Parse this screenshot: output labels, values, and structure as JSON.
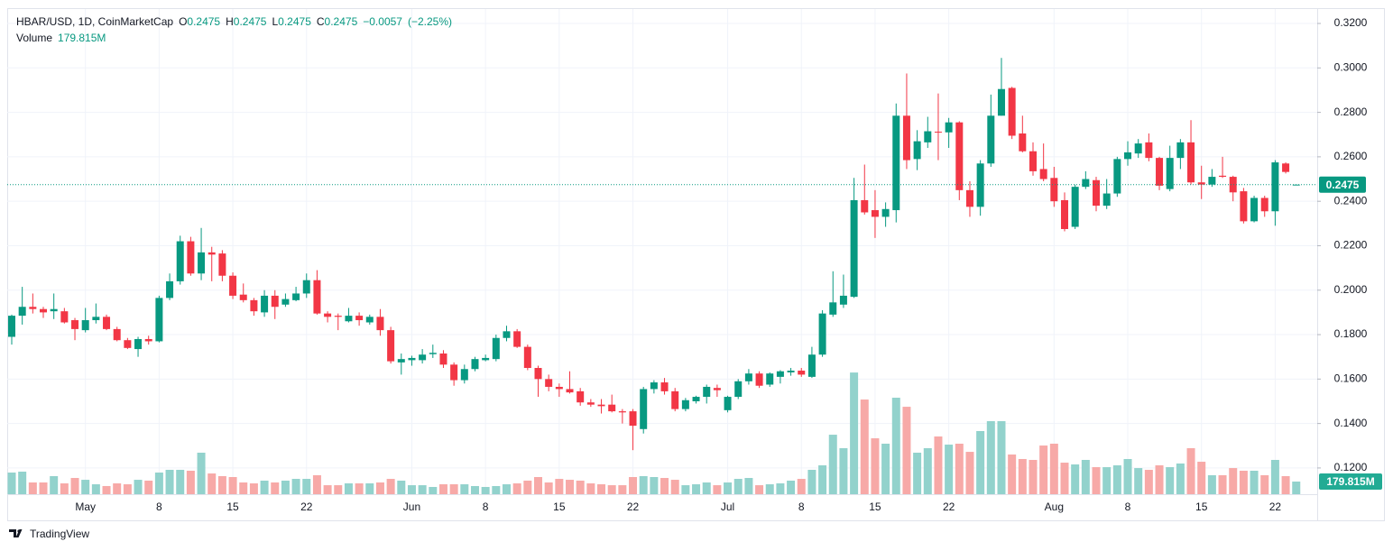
{
  "chart_data": {
    "type": "candlestick",
    "ohlc_labels": [
      "O",
      "H",
      "L",
      "C"
    ],
    "change": "−0.0057",
    "change_pct": "(−2.25%)",
    "up_color": "#089981",
    "down_color": "#f23645",
    "grid": true,
    "footer": "TradingView",
    "x": [
      "04-24",
      "04-25",
      "04-26",
      "04-27",
      "04-28",
      "04-29",
      "04-30",
      "05-01",
      "05-02",
      "05-03",
      "05-04",
      "05-05",
      "05-06",
      "05-07",
      "05-08",
      "05-09",
      "05-10",
      "05-11",
      "05-12",
      "05-13",
      "05-14",
      "05-15",
      "05-16",
      "05-17",
      "05-18",
      "05-19",
      "05-20",
      "05-21",
      "05-22",
      "05-23",
      "05-24",
      "05-25",
      "05-26",
      "05-27",
      "05-28",
      "05-29",
      "05-30",
      "05-31",
      "06-01",
      "06-02",
      "06-03",
      "06-04",
      "06-05",
      "06-06",
      "06-07",
      "06-08",
      "06-09",
      "06-10",
      "06-11",
      "06-12",
      "06-13",
      "06-14",
      "06-15",
      "06-16",
      "06-17",
      "06-18",
      "06-19",
      "06-20",
      "06-21",
      "06-22",
      "06-23",
      "06-24",
      "06-25",
      "06-26",
      "06-27",
      "06-28",
      "06-29",
      "06-30",
      "07-01",
      "07-02",
      "07-03",
      "07-04",
      "07-05",
      "07-06",
      "07-07",
      "07-08",
      "07-09",
      "07-10",
      "07-11",
      "07-12",
      "07-13",
      "07-14",
      "07-15",
      "07-16",
      "07-17",
      "07-18",
      "07-19",
      "07-20",
      "07-21",
      "07-22",
      "07-23",
      "07-24",
      "07-25",
      "07-26",
      "07-27",
      "07-28",
      "07-29",
      "07-30",
      "07-31",
      "08-01",
      "08-02",
      "08-03",
      "08-04",
      "08-05",
      "08-06",
      "08-07",
      "08-08",
      "08-09",
      "08-10",
      "08-11",
      "08-12",
      "08-13",
      "08-14",
      "08-15",
      "08-16",
      "08-17",
      "08-18",
      "08-19",
      "08-20",
      "08-21",
      "08-22",
      "08-23",
      "08-24"
    ],
    "xticks": [
      {
        "value": "05-01",
        "label": "May"
      },
      {
        "value": "05-08",
        "label": "8"
      },
      {
        "value": "05-15",
        "label": "15"
      },
      {
        "value": "05-22",
        "label": "22"
      },
      {
        "value": "06-01",
        "label": "Jun"
      },
      {
        "value": "06-08",
        "label": "8"
      },
      {
        "value": "06-15",
        "label": "15"
      },
      {
        "value": "06-22",
        "label": "22"
      },
      {
        "value": "07-01",
        "label": "Jul"
      },
      {
        "value": "07-08",
        "label": "8"
      },
      {
        "value": "07-15",
        "label": "15"
      },
      {
        "value": "07-22",
        "label": "22"
      },
      {
        "value": "08-01",
        "label": "Aug"
      },
      {
        "value": "08-08",
        "label": "8"
      },
      {
        "value": "08-15",
        "label": "15"
      },
      {
        "value": "08-22",
        "label": "22"
      }
    ],
    "ylim": [
      0.1082,
      0.3265
    ],
    "yticks": [
      {
        "value": 0.12,
        "label": "0.1200"
      },
      {
        "value": 0.14,
        "label": "0.1400"
      },
      {
        "value": 0.16,
        "label": "0.1600"
      },
      {
        "value": 0.18,
        "label": "0.1800"
      },
      {
        "value": 0.2,
        "label": "0.2000"
      },
      {
        "value": 0.22,
        "label": "0.2200"
      },
      {
        "value": 0.24,
        "label": "0.2400"
      },
      {
        "value": 0.26,
        "label": "0.2600"
      },
      {
        "value": 0.28,
        "label": "0.2800"
      },
      {
        "value": 0.3,
        "label": "0.3000"
      },
      {
        "value": 0.32,
        "label": "0.3200"
      }
    ],
    "y2lim": [
      0,
      6910
    ],
    "series": [
      {
        "name": "HBAR/USD, 1D, CoinMarketCap",
        "open": [
          0.179,
          0.1885,
          0.1925,
          0.1915,
          0.1905,
          0.1905,
          0.1865,
          0.182,
          0.1865,
          0.188,
          0.1825,
          0.1775,
          0.1735,
          0.178,
          0.177,
          0.1965,
          0.204,
          0.222,
          0.2075,
          0.217,
          0.2165,
          0.2065,
          0.198,
          0.1955,
          0.19,
          0.1975,
          0.1935,
          0.1955,
          0.1985,
          0.2045,
          0.1895,
          0.1885,
          0.186,
          0.1885,
          0.1855,
          0.188,
          0.182,
          0.1675,
          0.1685,
          0.1685,
          0.1712,
          0.1715,
          0.1665,
          0.1595,
          0.1645,
          0.1685,
          0.169,
          0.1785,
          0.1815,
          0.1745,
          0.165,
          0.16,
          0.1565,
          0.1555,
          0.1545,
          0.1495,
          0.1485,
          0.1485,
          0.1455,
          0.1455,
          0.1375,
          0.1555,
          0.1585,
          0.1545,
          0.1465,
          0.15,
          0.152,
          0.156,
          0.146,
          0.152,
          0.159,
          0.1625,
          0.1575,
          0.161,
          0.163,
          0.1638,
          0.161,
          0.171,
          0.189,
          0.1935,
          0.197,
          0.2405,
          0.236,
          0.233,
          0.236,
          0.2785,
          0.259,
          0.2665,
          0.2713,
          0.271,
          0.2755,
          0.245,
          0.2375,
          0.257,
          0.2785,
          0.291,
          0.2705,
          0.2625,
          0.2545,
          0.2505,
          0.2405,
          0.2285,
          0.2465,
          0.2495,
          0.238,
          0.2435,
          0.259,
          0.2615,
          0.2665,
          0.2595,
          0.2455,
          0.2595,
          0.2665,
          0.2485,
          0.2475,
          0.2515,
          0.251,
          0.2445,
          0.231,
          0.2415,
          0.2355,
          0.257,
          0.2475
        ],
        "high": [
          0.189,
          0.2015,
          0.1985,
          0.1925,
          0.1985,
          0.192,
          0.1875,
          0.192,
          0.194,
          0.189,
          0.1835,
          0.1785,
          0.179,
          0.1795,
          0.1975,
          0.2075,
          0.2245,
          0.224,
          0.228,
          0.2195,
          0.218,
          0.208,
          0.203,
          0.1965,
          0.2,
          0.2,
          0.1985,
          0.2015,
          0.2075,
          0.209,
          0.1905,
          0.1895,
          0.192,
          0.19,
          0.189,
          0.1915,
          0.1835,
          0.1715,
          0.1705,
          0.1735,
          0.1755,
          0.173,
          0.1675,
          0.1665,
          0.17,
          0.171,
          0.18,
          0.184,
          0.1825,
          0.1755,
          0.166,
          0.162,
          0.158,
          0.1635,
          0.156,
          0.151,
          0.151,
          0.153,
          0.1465,
          0.1465,
          0.1565,
          0.1595,
          0.1605,
          0.156,
          0.1515,
          0.1525,
          0.1575,
          0.1575,
          0.1525,
          0.16,
          0.1645,
          0.1635,
          0.163,
          0.164,
          0.165,
          0.165,
          0.1745,
          0.191,
          0.2085,
          0.207,
          0.2505,
          0.2565,
          0.245,
          0.2395,
          0.284,
          0.2975,
          0.272,
          0.278,
          0.2885,
          0.2775,
          0.276,
          0.249,
          0.2585,
          0.288,
          0.3045,
          0.2915,
          0.2785,
          0.2665,
          0.266,
          0.2555,
          0.244,
          0.2475,
          0.2535,
          0.251,
          0.25,
          0.26,
          0.267,
          0.268,
          0.2705,
          0.26,
          0.265,
          0.268,
          0.2765,
          0.256,
          0.2545,
          0.26,
          0.2515,
          0.246,
          0.2425,
          0.2425,
          0.2585,
          0.2575,
          0.2475
        ],
        "low": [
          0.1755,
          0.1845,
          0.1895,
          0.1875,
          0.187,
          0.185,
          0.1775,
          0.181,
          0.185,
          0.182,
          0.177,
          0.1735,
          0.17,
          0.1755,
          0.1765,
          0.1955,
          0.2025,
          0.2065,
          0.2045,
          0.204,
          0.204,
          0.196,
          0.1945,
          0.1885,
          0.188,
          0.187,
          0.1925,
          0.195,
          0.1965,
          0.189,
          0.1855,
          0.182,
          0.1855,
          0.184,
          0.1845,
          0.1795,
          0.167,
          0.162,
          0.166,
          0.167,
          0.1695,
          0.165,
          0.157,
          0.158,
          0.1635,
          0.168,
          0.168,
          0.177,
          0.174,
          0.164,
          0.152,
          0.1545,
          0.152,
          0.1535,
          0.148,
          0.1475,
          0.1445,
          0.145,
          0.14,
          0.128,
          0.1355,
          0.1535,
          0.153,
          0.1455,
          0.1455,
          0.149,
          0.149,
          0.152,
          0.145,
          0.151,
          0.1575,
          0.156,
          0.1565,
          0.158,
          0.1615,
          0.161,
          0.1605,
          0.17,
          0.188,
          0.192,
          0.1965,
          0.234,
          0.2235,
          0.2285,
          0.2305,
          0.2545,
          0.254,
          0.264,
          0.2585,
          0.264,
          0.2405,
          0.233,
          0.2335,
          0.2555,
          0.2785,
          0.268,
          0.262,
          0.2515,
          0.249,
          0.2375,
          0.2265,
          0.2275,
          0.2455,
          0.2355,
          0.2365,
          0.242,
          0.256,
          0.2595,
          0.258,
          0.245,
          0.2445,
          0.2545,
          0.2475,
          0.241,
          0.2465,
          0.2505,
          0.24,
          0.23,
          0.2305,
          0.233,
          0.229,
          0.2525,
          0.2475
        ],
        "close": [
          0.1885,
          0.1925,
          0.1915,
          0.19,
          0.1915,
          0.1855,
          0.1825,
          0.1865,
          0.188,
          0.1825,
          0.1775,
          0.174,
          0.178,
          0.177,
          0.1965,
          0.204,
          0.222,
          0.2075,
          0.217,
          0.216,
          0.2065,
          0.1975,
          0.1955,
          0.1905,
          0.1975,
          0.1925,
          0.196,
          0.1985,
          0.2045,
          0.1895,
          0.188,
          0.188,
          0.1885,
          0.1865,
          0.188,
          0.182,
          0.168,
          0.169,
          0.1695,
          0.171,
          0.1718,
          0.1665,
          0.1595,
          0.1645,
          0.169,
          0.1695,
          0.1785,
          0.1815,
          0.1745,
          0.165,
          0.16,
          0.1565,
          0.1555,
          0.154,
          0.1495,
          0.1485,
          0.1478,
          0.1455,
          0.145,
          0.139,
          0.1555,
          0.1585,
          0.1545,
          0.1465,
          0.1505,
          0.152,
          0.1565,
          0.155,
          0.152,
          0.159,
          0.1625,
          0.157,
          0.1625,
          0.1635,
          0.1638,
          0.162,
          0.171,
          0.1895,
          0.1945,
          0.1975,
          0.2405,
          0.235,
          0.233,
          0.2365,
          0.2785,
          0.2585,
          0.267,
          0.2715,
          0.271,
          0.2755,
          0.245,
          0.2375,
          0.257,
          0.2785,
          0.2905,
          0.2695,
          0.2625,
          0.2535,
          0.25,
          0.24,
          0.2275,
          0.2465,
          0.25,
          0.238,
          0.2435,
          0.259,
          0.262,
          0.266,
          0.2595,
          0.247,
          0.2595,
          0.2665,
          0.2485,
          0.2475,
          0.251,
          0.251,
          0.244,
          0.231,
          0.2415,
          0.2355,
          0.2575,
          0.2532,
          0.2475
        ]
      },
      {
        "name": "Volume",
        "type": "bar",
        "axis": "y2",
        "up_color": "#92d2cc",
        "down_color": "#f7a9a7",
        "last_label": "179.815M",
        "values": [
          308,
          321,
          167,
          167,
          257,
          154,
          231,
          205,
          141,
          116,
          154,
          141,
          205,
          193,
          308,
          347,
          347,
          334,
          591,
          295,
          257,
          244,
          167,
          154,
          193,
          167,
          193,
          218,
          218,
          270,
          128,
          128,
          154,
          154,
          154,
          167,
          218,
          193,
          128,
          128,
          103,
          141,
          141,
          141,
          116,
          103,
          116,
          141,
          154,
          193,
          244,
          167,
          218,
          205,
          193,
          154,
          141,
          128,
          128,
          244,
          257,
          244,
          231,
          205,
          128,
          141,
          167,
          128,
          167,
          218,
          231,
          128,
          141,
          154,
          193,
          218,
          347,
          411,
          847,
          655,
          1733,
          1348,
          796,
          719,
          1374,
          1245,
          591,
          655,
          822,
          706,
          719,
          603,
          899,
          1040,
          1040,
          565,
          501,
          488,
          693,
          719,
          449,
          424,
          488,
          385,
          385,
          411,
          501,
          372,
          347,
          411,
          385,
          437,
          655,
          462,
          270,
          270,
          372,
          334,
          334,
          270,
          488,
          257,
          179.815
        ]
      }
    ]
  }
}
